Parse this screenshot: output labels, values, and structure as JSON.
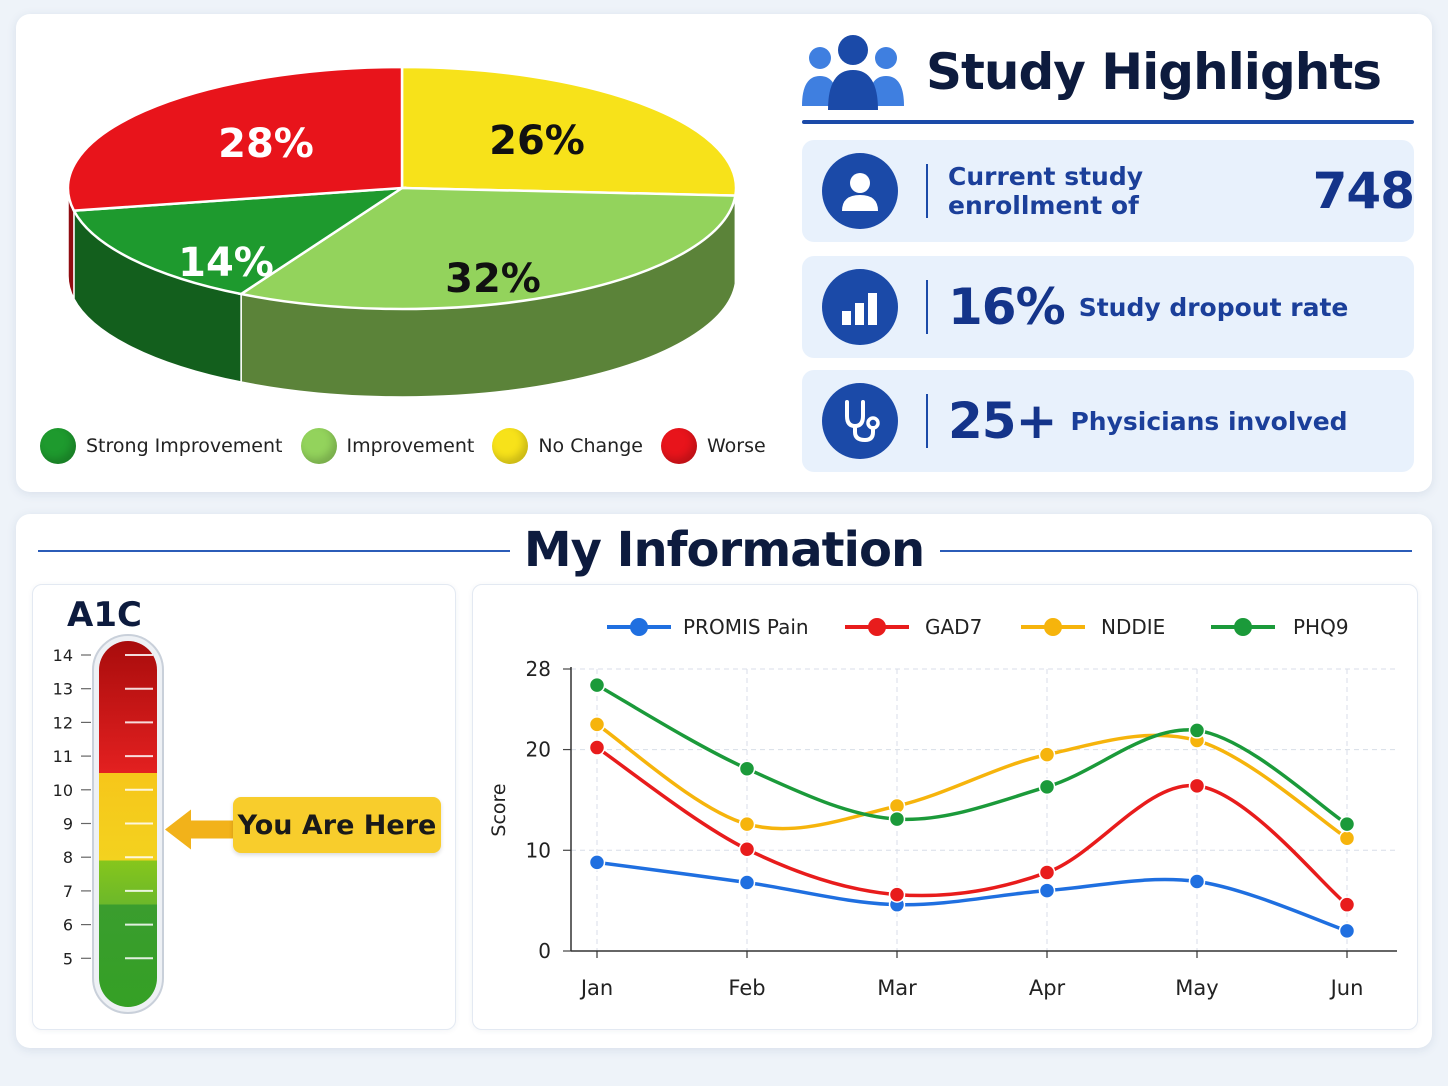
{
  "pie": {
    "chart_data": {
      "type": "pie",
      "slices": [
        {
          "label": "Strong Improvement",
          "value": 14,
          "display": "14%",
          "color": "#1e9a2e"
        },
        {
          "label": "Improvement",
          "value": 32,
          "display": "32%",
          "color": "#93d35c"
        },
        {
          "label": "No Change",
          "value": 26,
          "display": "26%",
          "color": "#f7e21a"
        },
        {
          "label": "Worse",
          "value": 28,
          "display": "28%",
          "color": "#e8141b"
        }
      ]
    }
  },
  "highlights": {
    "title": "Study Highlights",
    "enrollment_label": "Current study enrollment of",
    "enrollment_value": "748",
    "dropout_value": "16%",
    "dropout_label": "Study dropout rate",
    "physicians_value": "25+",
    "physicians_label": "Physicians involved"
  },
  "info": {
    "title": "My Information",
    "a1c": {
      "title": "A1C",
      "ticks": [
        "14",
        "13",
        "12",
        "11",
        "10",
        "9",
        "8",
        "7",
        "6",
        "5"
      ],
      "marker_label": "You Are Here",
      "marker_value": 9
    },
    "chart_data": {
      "type": "line",
      "categories": [
        "Jan",
        "Feb",
        "Mar",
        "Apr",
        "May",
        "Jun"
      ],
      "ylabel": "Score",
      "ylim": [
        0,
        28
      ],
      "yticks": [
        "0",
        "10",
        "20",
        "28"
      ],
      "grid": true,
      "legend": "top",
      "series": [
        {
          "name": "PROMIS Pain",
          "color": "#1f6fe0",
          "values": [
            8.8,
            6.8,
            4.6,
            6.0,
            6.9,
            2.0
          ]
        },
        {
          "name": "GAD7",
          "color": "#e81c1c",
          "values": [
            20.2,
            10.1,
            5.6,
            7.8,
            16.4,
            4.6
          ]
        },
        {
          "name": "NDDIE",
          "color": "#f6b40c",
          "values": [
            22.5,
            12.6,
            14.4,
            19.5,
            20.9,
            11.2
          ]
        },
        {
          "name": "PHQ9",
          "color": "#1b9a3a",
          "values": [
            26.4,
            18.1,
            13.1,
            16.3,
            21.9,
            12.6
          ]
        }
      ]
    }
  }
}
